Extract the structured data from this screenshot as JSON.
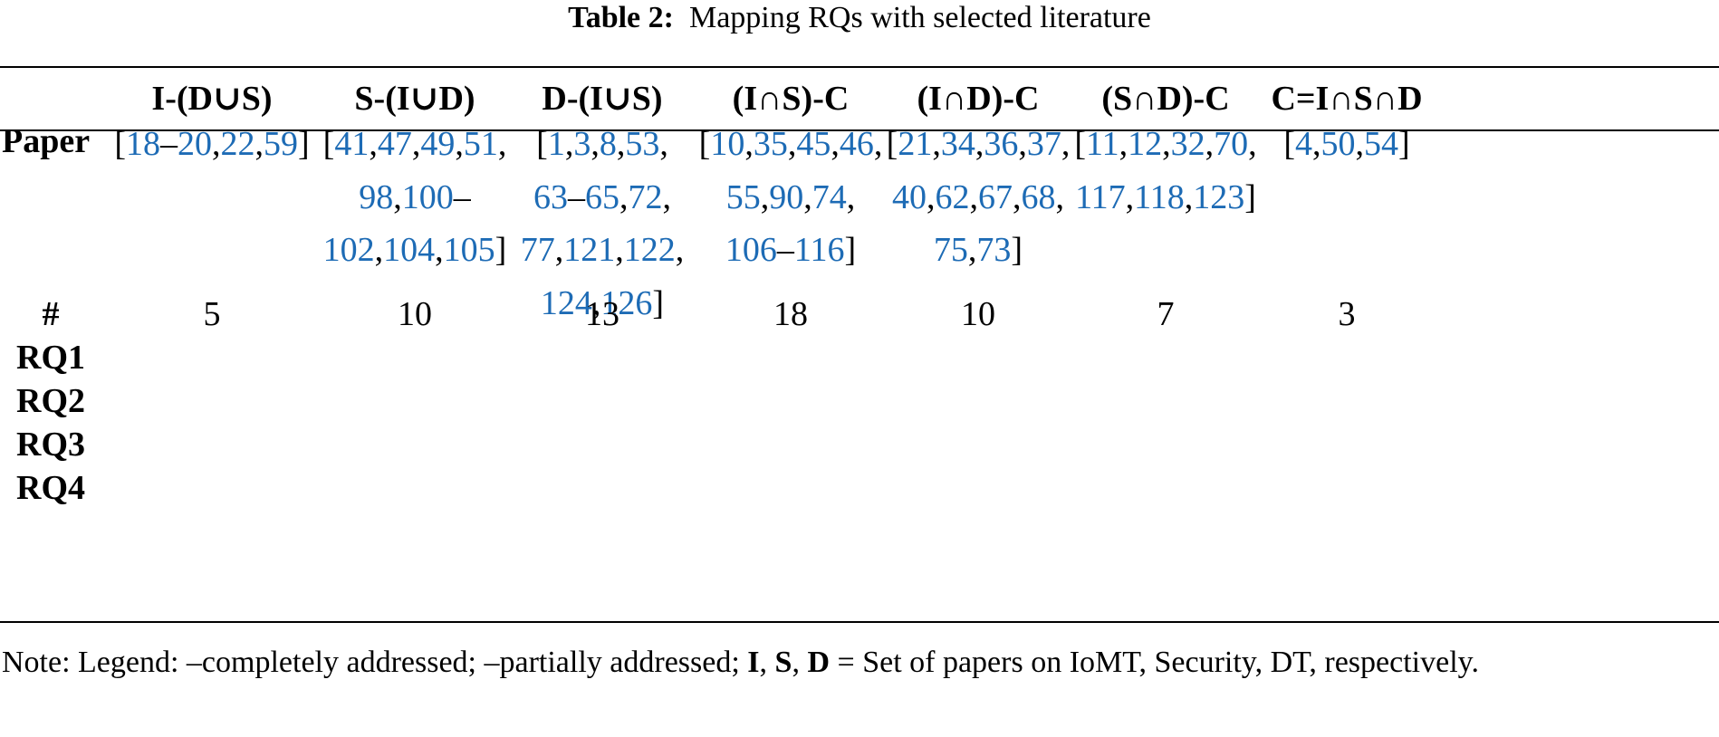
{
  "table": {
    "caption_label": "Table 2:",
    "caption_text": "Mapping RQs with selected literature",
    "columns": [
      "I-(D∪S)",
      "S-(I∪D)",
      "D-(I∪S)",
      "(I∩S)-C",
      "(I∩D)-C",
      "(S∩D)-C",
      "C=I∩S∩D"
    ],
    "row_labels": {
      "paper": "Paper",
      "count": "#",
      "rq1": "RQ1",
      "rq2": "RQ2",
      "rq3": "RQ3",
      "rq4": "RQ4"
    },
    "paper_refs": [
      [
        "[18–20,22,59]"
      ],
      [
        "[41,47,49,51,",
        "98,100–",
        "102,104,105]"
      ],
      [
        "[1,3,8,53,",
        "63–65,72,",
        "77,121,122,",
        "124,126]"
      ],
      [
        "[10,35,45,46,",
        "55,90,74,",
        "106–116]"
      ],
      [
        "[21,34,36,37,",
        "40,62,67,68,",
        "75,73]"
      ],
      [
        "[11,12,32,70,",
        "117,118,123]"
      ],
      [
        "[4,50,54]"
      ]
    ],
    "counts": [
      "5",
      "10",
      "13",
      "18",
      "10",
      "7",
      "3"
    ]
  },
  "note": {
    "prefix": "Note: Legend: –completely addressed; –partially addressed;",
    "sets": [
      "I",
      "S",
      "D"
    ],
    "suffix": "= Set of papers on IoMT, Security, DT, respectively."
  }
}
